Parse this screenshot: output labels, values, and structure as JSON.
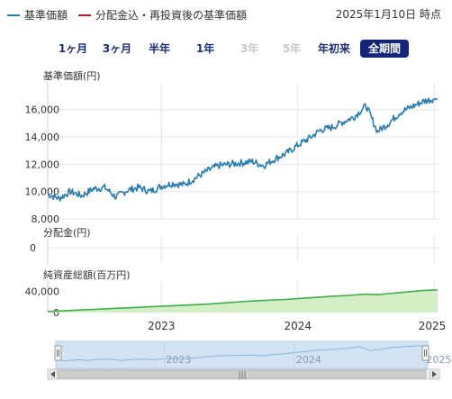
{
  "legend": {
    "items": [
      {
        "label": "基準価額",
        "color": "#2a7cb0"
      },
      {
        "label": "分配金込・再投資後の基準価額",
        "color": "#b31d24"
      }
    ]
  },
  "as_of": "2025年1月10日 時点",
  "ranges": [
    {
      "label": "1ヶ月",
      "state": "enabled"
    },
    {
      "label": "3ヶ月",
      "state": "enabled"
    },
    {
      "label": "半年",
      "state": "enabled"
    },
    {
      "label": "1年",
      "state": "enabled"
    },
    {
      "label": "3年",
      "state": "disabled"
    },
    {
      "label": "5年",
      "state": "disabled"
    },
    {
      "label": "年初来",
      "state": "enabled"
    },
    {
      "label": "全期間",
      "state": "active"
    }
  ],
  "colors": {
    "nav_line": "#2a7cb0",
    "assets_line": "#3fae49",
    "assets_fill": "#d4efc6",
    "grid": "#e6e6e6",
    "navigator_fill": "#d2e3f3"
  },
  "chart_data": [
    {
      "type": "line",
      "title": "基準価額(円)",
      "y_ticks": [
        "8,000",
        "10,000",
        "12,000",
        "14,000",
        "16,000"
      ],
      "ylim": [
        8000,
        17500
      ],
      "x_ticks": [
        "2023",
        "2024",
        "2025"
      ],
      "x_range": [
        "2022-03",
        "2025-01-10"
      ],
      "series": [
        {
          "name": "基準価額",
          "x": [
            "2022-03",
            "2022-04",
            "2022-05",
            "2022-06",
            "2022-07",
            "2022-08",
            "2022-09",
            "2022-10",
            "2022-11",
            "2022-12",
            "2023-01",
            "2023-02",
            "2023-03",
            "2023-04",
            "2023-05",
            "2023-06",
            "2023-07",
            "2023-08",
            "2023-09",
            "2023-10",
            "2023-11",
            "2023-12",
            "2024-01",
            "2024-02",
            "2024-03",
            "2024-04",
            "2024-05",
            "2024-06",
            "2024-07",
            "2024-08",
            "2024-09",
            "2024-10",
            "2024-11",
            "2024-12",
            "2025-01"
          ],
          "values": [
            9800,
            9500,
            10000,
            9700,
            10200,
            10300,
            9600,
            10100,
            10300,
            10000,
            10400,
            10600,
            10500,
            11000,
            11500,
            11900,
            12000,
            12100,
            12200,
            11900,
            12400,
            12800,
            13400,
            13900,
            14500,
            14700,
            15100,
            15500,
            16300,
            14400,
            15000,
            15800,
            16200,
            16600,
            16800
          ]
        }
      ]
    },
    {
      "type": "bar",
      "title": "分配金(円)",
      "y_ticks": [
        "0"
      ],
      "values": []
    },
    {
      "type": "area",
      "title": "純資産総額(百万円)",
      "y_ticks": [
        "0",
        "40,000"
      ],
      "ylim": [
        0,
        60000
      ],
      "series": [
        {
          "name": "純資産総額",
          "values": [
            2000,
            3000,
            4000,
            5000,
            6000,
            7000,
            8000,
            9000,
            10000,
            11000,
            12000,
            13000,
            14000,
            15000,
            16000,
            17500,
            19000,
            20500,
            22000,
            23000,
            24000,
            25000,
            26500,
            28000,
            29500,
            31000,
            32000,
            33500,
            35000,
            34000,
            36000,
            38000,
            40000,
            42000,
            43000
          ]
        }
      ]
    }
  ],
  "navigator": {
    "x_ticks": [
      "2023",
      "2024",
      "2025"
    ],
    "handle_glyph": "|||"
  }
}
